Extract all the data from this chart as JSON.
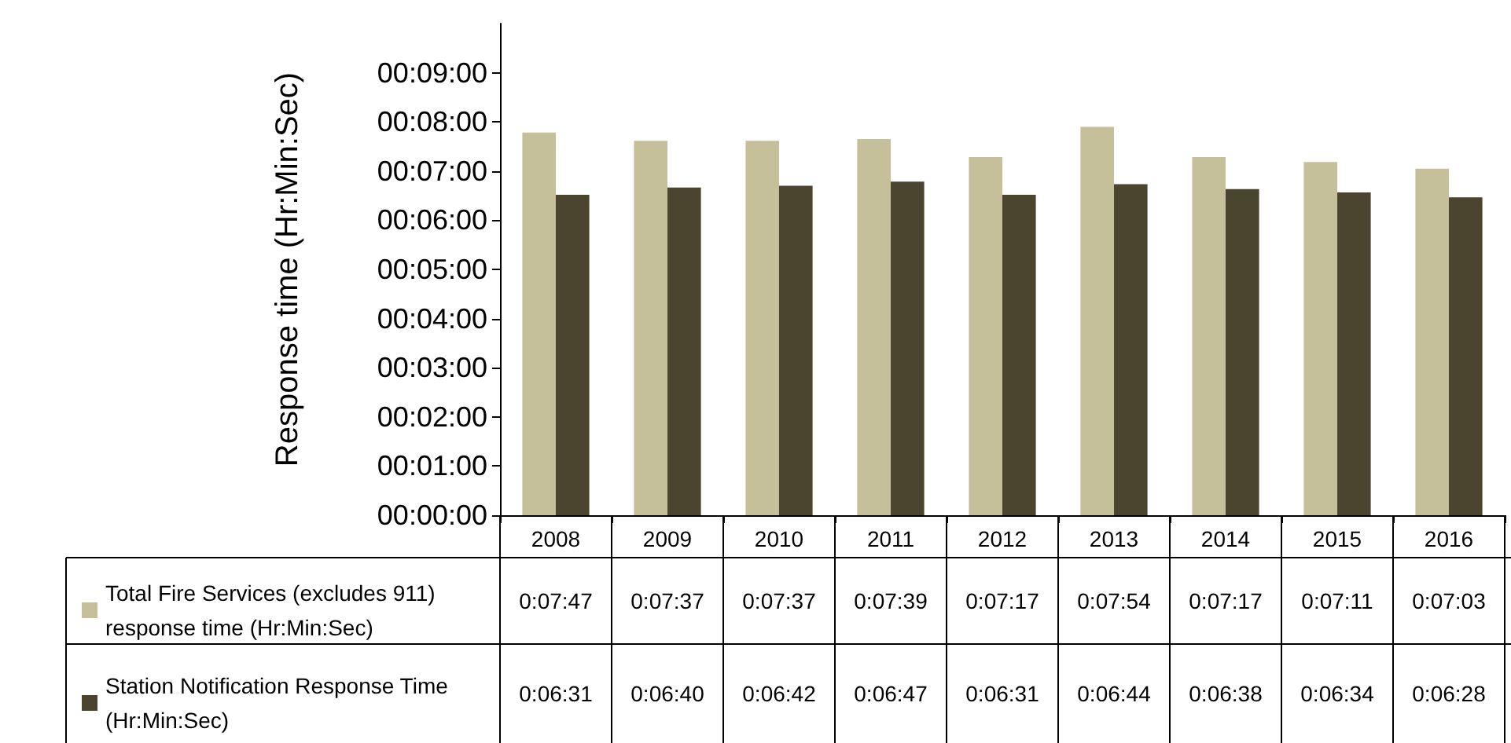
{
  "chart_data": {
    "type": "bar",
    "ylabel": "Response time (Hr:Min:Sec)",
    "categories": [
      "2008",
      "2009",
      "2010",
      "2011",
      "2012",
      "2013",
      "2014",
      "2015",
      "2016"
    ],
    "series": [
      {
        "name": "Total Fire Services (excludes 911) response time (Hr:Min:Sec)",
        "color": "#c5bf9a",
        "values": [
          467,
          457,
          457,
          459,
          437,
          474,
          437,
          431,
          423
        ],
        "value_labels": [
          "0:07:47",
          "0:07:37",
          "0:07:37",
          "0:07:39",
          "0:07:17",
          "0:07:54",
          "0:07:17",
          "0:07:11",
          "0:07:03"
        ]
      },
      {
        "name": "Station Notification Response Time (Hr:Min:Sec)",
        "color": "#4b4530",
        "values": [
          391,
          400,
          402,
          407,
          391,
          404,
          398,
          394,
          388
        ],
        "value_labels": [
          "0:06:31",
          "0:06:40",
          "0:06:42",
          "0:06:47",
          "0:06:31",
          "0:06:44",
          "0:06:38",
          "0:06:34",
          "0:06:28"
        ]
      }
    ],
    "ylim": [
      0,
      600
    ],
    "yticks": [
      {
        "value": 0,
        "label": "00:00:00"
      },
      {
        "value": 60,
        "label": "00:01:00"
      },
      {
        "value": 120,
        "label": "00:02:00"
      },
      {
        "value": 180,
        "label": "00:03:00"
      },
      {
        "value": 240,
        "label": "00:04:00"
      },
      {
        "value": 300,
        "label": "00:05:00"
      },
      {
        "value": 360,
        "label": "00:06:00"
      },
      {
        "value": 420,
        "label": "00:07:00"
      },
      {
        "value": 480,
        "label": "00:08:00"
      },
      {
        "value": 540,
        "label": "00:09:00"
      }
    ],
    "legend": "bottom left",
    "grid": false
  }
}
